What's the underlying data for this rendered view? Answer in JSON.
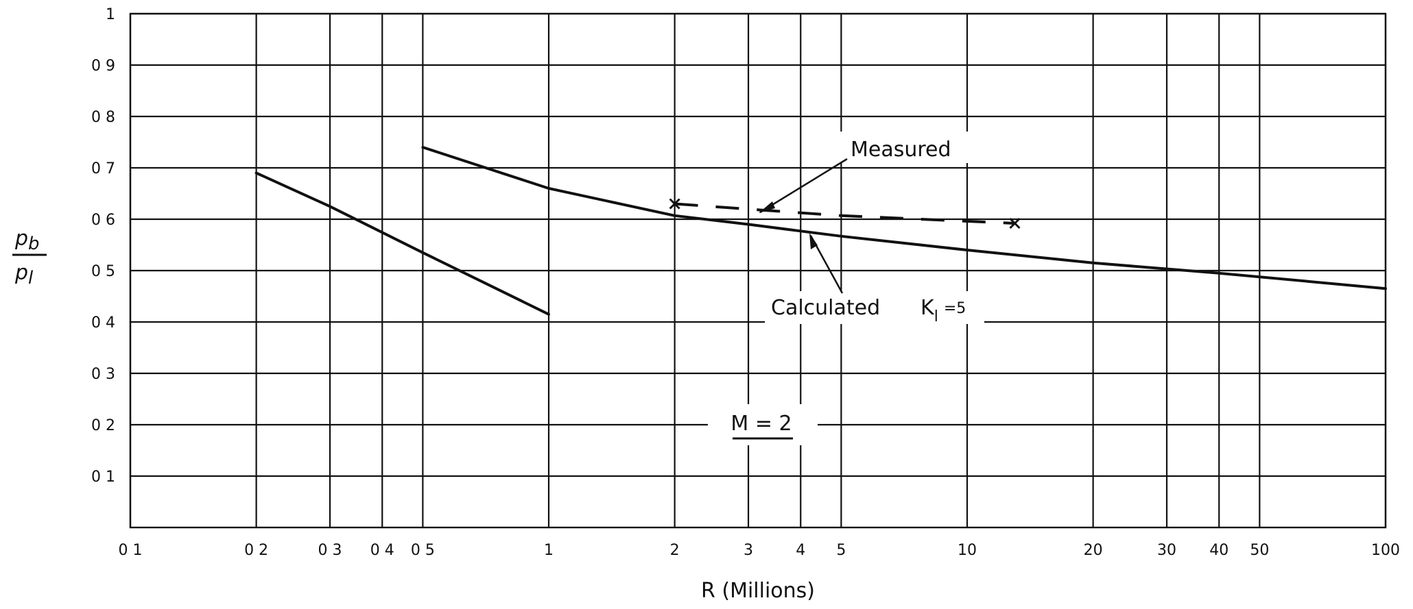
{
  "chart_data": {
    "type": "line",
    "x_scale": "log",
    "xlim": [
      0.1,
      100
    ],
    "ylim": [
      0,
      1
    ],
    "grid": true,
    "xlabel": "R  (Millions)",
    "ylabel_num": "p",
    "ylabel_num_sub": "b",
    "ylabel_den": "p",
    "ylabel_den_sub": "l",
    "x_ticks": [
      {
        "value": 0.1,
        "label": "0 1"
      },
      {
        "value": 0.2,
        "label": "0 2"
      },
      {
        "value": 0.3,
        "label": "0 3"
      },
      {
        "value": 0.4,
        "label": "0 4"
      },
      {
        "value": 0.5,
        "label": "0 5"
      },
      {
        "value": 1,
        "label": "1"
      },
      {
        "value": 2,
        "label": "2"
      },
      {
        "value": 3,
        "label": "3"
      },
      {
        "value": 4,
        "label": "4"
      },
      {
        "value": 5,
        "label": "5"
      },
      {
        "value": 10,
        "label": "10"
      },
      {
        "value": 20,
        "label": "20"
      },
      {
        "value": 30,
        "label": "30"
      },
      {
        "value": 40,
        "label": "40"
      },
      {
        "value": 50,
        "label": "50"
      },
      {
        "value": 100,
        "label": "100"
      }
    ],
    "y_ticks": [
      {
        "value": 0.1,
        "label": "0 1"
      },
      {
        "value": 0.2,
        "label": "0 2"
      },
      {
        "value": 0.3,
        "label": "0 3"
      },
      {
        "value": 0.4,
        "label": "0 4"
      },
      {
        "value": 0.5,
        "label": "0 5"
      },
      {
        "value": 0.6,
        "label": "0 6"
      },
      {
        "value": 0.7,
        "label": "0 7"
      },
      {
        "value": 0.8,
        "label": "0 8"
      },
      {
        "value": 0.9,
        "label": "0 9"
      },
      {
        "value": 1.0,
        "label": "1"
      }
    ],
    "series": [
      {
        "style": "solid",
        "x": [
          0.2,
          0.3,
          0.5,
          1.0
        ],
        "y": [
          0.69,
          0.625,
          0.535,
          0.415
        ]
      },
      {
        "style": "solid",
        "x": [
          0.5,
          1,
          2,
          3,
          4,
          5,
          10,
          20,
          40,
          100
        ],
        "y": [
          0.74,
          0.66,
          0.607,
          0.59,
          0.577,
          0.567,
          0.54,
          0.515,
          0.495,
          0.465
        ]
      },
      {
        "name": "Measured",
        "style": "dashed",
        "x": [
          2,
          3.2,
          5,
          13
        ],
        "y": [
          0.63,
          0.618,
          0.607,
          0.592
        ]
      }
    ],
    "annotations": {
      "measured": "Measured",
      "calculated": "Calculated",
      "k_symbol": "K",
      "k_sub": "l",
      "k_value": "=5",
      "mach": "M = 2"
    }
  }
}
